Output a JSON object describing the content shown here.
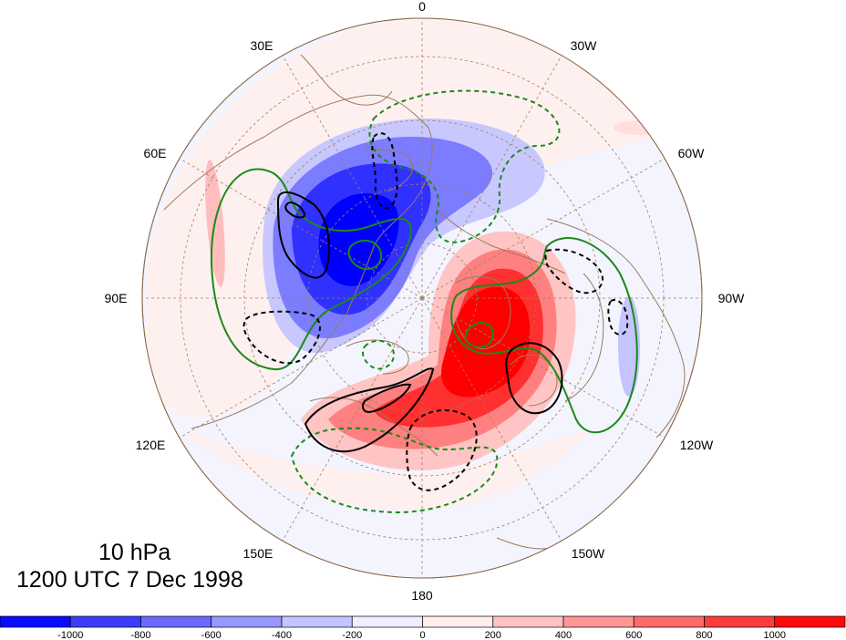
{
  "map": {
    "projection": "north-polar-stereographic",
    "background_fill": "#f5f5ff",
    "longitude_labels": [
      "0",
      "30W",
      "60W",
      "90W",
      "120W",
      "150W",
      "180",
      "150E",
      "120E",
      "90E",
      "60E",
      "30E"
    ],
    "features": {
      "negative_anomaly": {
        "color": "#1414f0",
        "region": "Eurasia / Arctic (Siberia-Scandinavia)"
      },
      "positive_anomaly": {
        "color": "#f01010",
        "region": "North America / Pacific side"
      },
      "contours": {
        "solid_black": "positive",
        "dashed_black": "negative",
        "green": "secondary field"
      }
    }
  },
  "title": {
    "level": "10 hPa",
    "time": "1200 UTC 7 Dec 1998"
  },
  "colorbar": {
    "tick_labels": [
      "-1000",
      "-800",
      "-600",
      "-400",
      "-200",
      "0",
      "200",
      "400",
      "600",
      "800",
      "1000"
    ],
    "colors": [
      "#0a0aff",
      "#3c3cff",
      "#6a6aff",
      "#9898ff",
      "#c4c4ff",
      "#eeeeff",
      "#ffeeee",
      "#ffc2c2",
      "#ff9696",
      "#ff6a6a",
      "#ff3c3c",
      "#ff0a0a"
    ]
  }
}
